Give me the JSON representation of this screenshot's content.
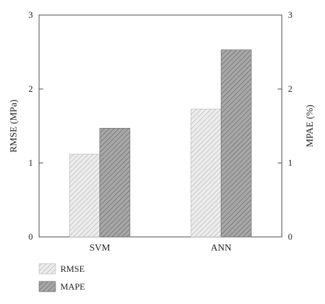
{
  "chart_data": {
    "type": "bar",
    "categories": [
      "SVM",
      "ANN"
    ],
    "series": [
      {
        "name": "RMSE",
        "axis": "left",
        "values": [
          1.12,
          1.73
        ],
        "fill": "#ededed",
        "hatch": "#b0b0b0"
      },
      {
        "name": "MAPE",
        "axis": "right",
        "values": [
          1.47,
          2.53
        ],
        "fill": "#a8a8a8",
        "hatch": "#5e5e5e"
      }
    ],
    "ylabel": "RMSE (MPa)",
    "y2label": "MPAE (%)",
    "ylim": [
      0,
      3
    ],
    "y2lim": [
      0,
      3
    ],
    "yticks": [
      "0",
      "1",
      "2",
      "3"
    ],
    "y2ticks": [
      "0",
      "1",
      "2",
      "3"
    ],
    "grid": false,
    "legend_placement": "bottom-left"
  }
}
